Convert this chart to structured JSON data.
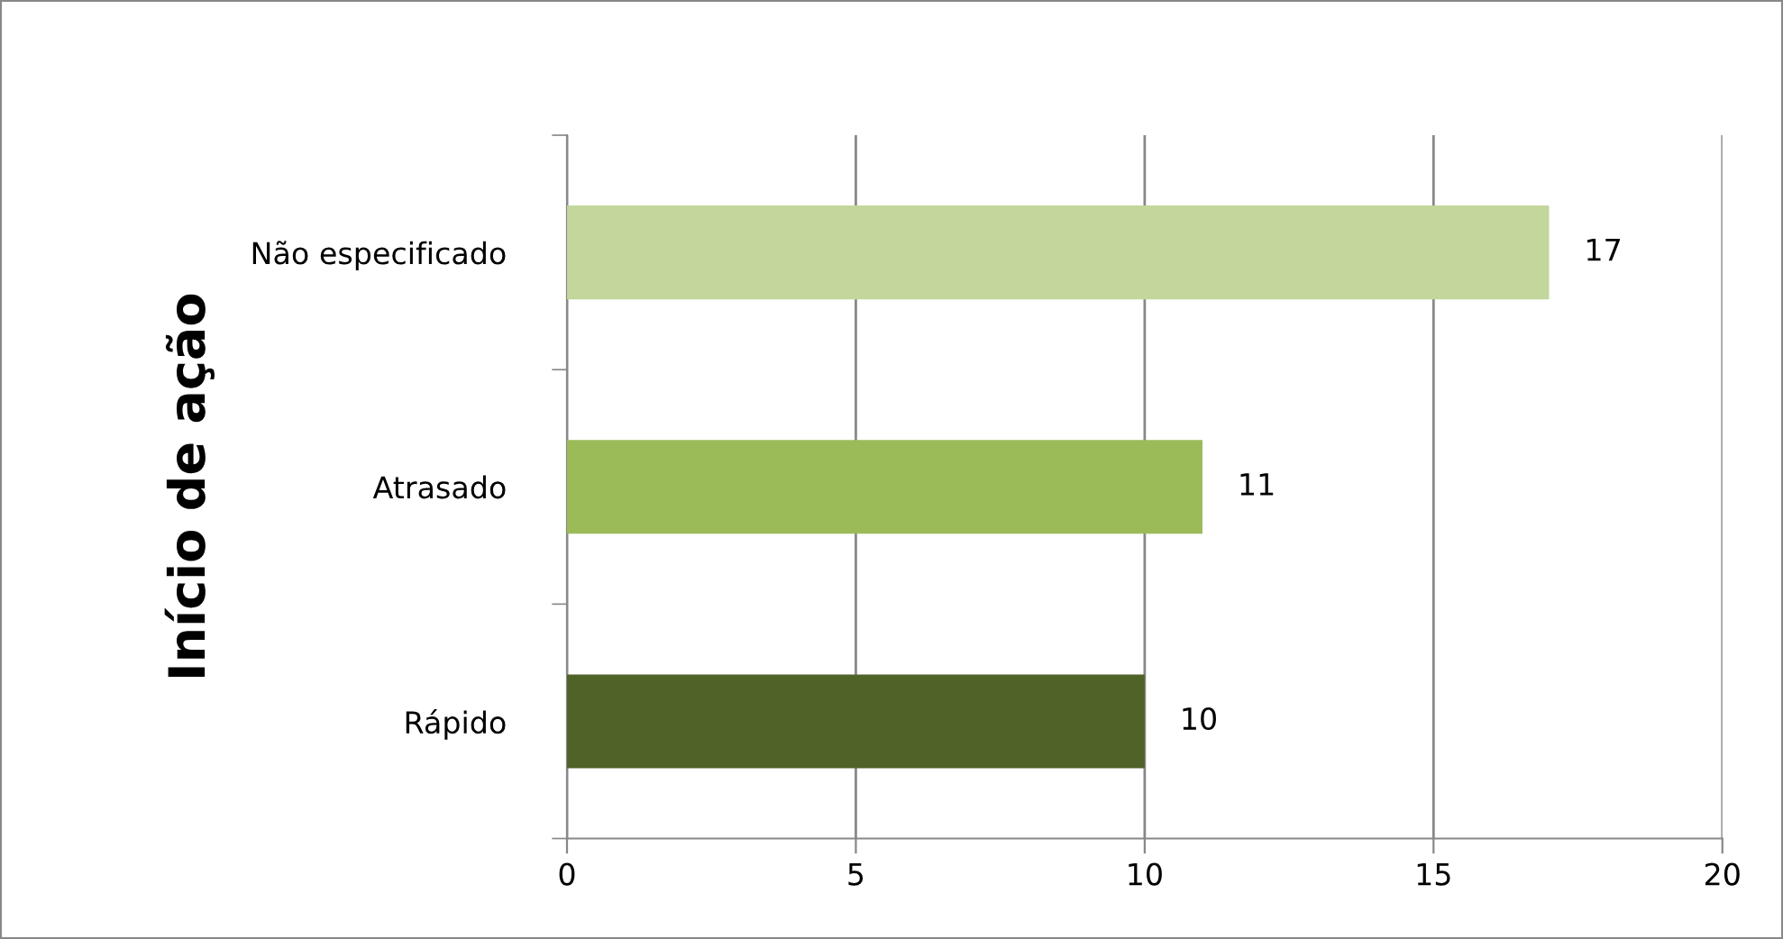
{
  "chart_data": {
    "type": "bar",
    "orientation": "horizontal",
    "ylabel": "Início de ação",
    "categories": [
      "Não especificado",
      "Atrasado",
      "Rápido"
    ],
    "values": [
      17,
      11,
      10
    ],
    "colors": [
      "#c3d69b",
      "#9bbb59",
      "#4f6228"
    ],
    "xlim": [
      0,
      20
    ],
    "xticks": [
      0,
      5,
      10,
      15,
      20
    ],
    "grid": "x",
    "data_labels": true
  }
}
